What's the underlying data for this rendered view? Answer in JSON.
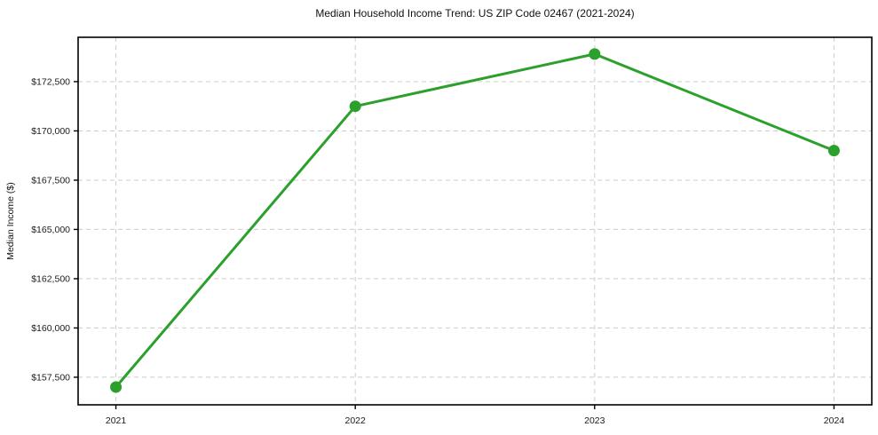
{
  "chart_data": {
    "type": "line",
    "title": "Median Household Income Trend: US ZIP Code 02467 (2021-2024)",
    "xlabel": "",
    "ylabel": "Median Income ($)",
    "categories": [
      "2021",
      "2022",
      "2023",
      "2024"
    ],
    "series": [
      {
        "name": "Median Household Income",
        "values": [
          157000,
          171250,
          173900,
          169000
        ]
      }
    ],
    "yticks": [
      {
        "value": 157500,
        "label": "$157,500"
      },
      {
        "value": 160000,
        "label": "$160,000"
      },
      {
        "value": 162500,
        "label": "$162,500"
      },
      {
        "value": 165000,
        "label": "$165,000"
      },
      {
        "value": 167500,
        "label": "$167,500"
      },
      {
        "value": 170000,
        "label": "$170,000"
      },
      {
        "value": 172500,
        "label": "$172,500"
      }
    ],
    "ylim": [
      156100,
      174750
    ],
    "grid": true,
    "legend": "none",
    "colors": {
      "line": "#2ca02c",
      "marker": "#2ca02c",
      "grid": "#cccccc",
      "spine": "#000000",
      "text": "#1a1a1a",
      "background": "#ffffff"
    }
  }
}
